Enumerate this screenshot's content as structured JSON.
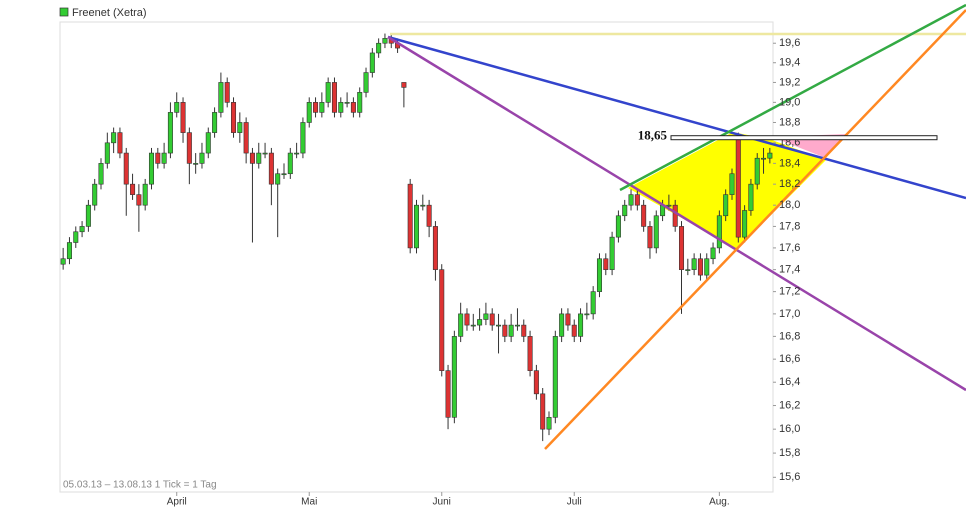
{
  "chart_data": {
    "type": "candlestick",
    "legend": "Freenet (Xetra)",
    "footer": "05.03.13 – 13.08.13   1 Tick = 1 Tag",
    "log": true,
    "up_color": "#33cc33",
    "down_color": "#dd3333",
    "ylim": [
      15.48,
      19.82
    ],
    "yticks": [
      {
        "value": 15.6,
        "label": "15,6"
      },
      {
        "value": 15.8,
        "label": "15,8"
      },
      {
        "value": 16.0,
        "label": "16,0"
      },
      {
        "value": 16.2,
        "label": "16,2"
      },
      {
        "value": 16.4,
        "label": "16,4"
      },
      {
        "value": 16.6,
        "label": "16,6"
      },
      {
        "value": 16.8,
        "label": "16,8"
      },
      {
        "value": 17.0,
        "label": "17,0"
      },
      {
        "value": 17.2,
        "label": "17,2"
      },
      {
        "value": 17.4,
        "label": "17,4"
      },
      {
        "value": 17.6,
        "label": "17,6"
      },
      {
        "value": 17.8,
        "label": "17,8"
      },
      {
        "value": 18.0,
        "label": "18,0"
      },
      {
        "value": 18.2,
        "label": "18,2"
      },
      {
        "value": 18.4,
        "label": "18,4"
      },
      {
        "value": 18.6,
        "label": "18,6"
      },
      {
        "value": 18.8,
        "label": "18,8"
      },
      {
        "value": 19.0,
        "label": "19,0"
      },
      {
        "value": 19.2,
        "label": "19,2"
      },
      {
        "value": 19.4,
        "label": "19,4"
      },
      {
        "value": 19.6,
        "label": "19,6"
      }
    ],
    "annotation": {
      "value": 18.65,
      "label": "18,65"
    },
    "categories": [
      null,
      null,
      null,
      null,
      null,
      null,
      null,
      null,
      null,
      null,
      null,
      null,
      null,
      null,
      null,
      null,
      null,
      null,
      "April",
      null,
      null,
      null,
      null,
      null,
      null,
      null,
      null,
      null,
      null,
      null,
      null,
      null,
      null,
      null,
      null,
      null,
      null,
      null,
      null,
      "Mai",
      null,
      null,
      null,
      null,
      null,
      null,
      null,
      null,
      null,
      null,
      null,
      null,
      null,
      null,
      null,
      null,
      null,
      null,
      null,
      null,
      "Juni",
      null,
      null,
      null,
      null,
      null,
      null,
      null,
      null,
      null,
      null,
      null,
      null,
      null,
      null,
      null,
      null,
      null,
      null,
      null,
      null,
      "Juli",
      null,
      null,
      null,
      null,
      null,
      null,
      null,
      null,
      null,
      null,
      null,
      null,
      null,
      null,
      null,
      null,
      null,
      null,
      null,
      null,
      null,
      null,
      "Aug.",
      null,
      null,
      null,
      null,
      null,
      null,
      null,
      null
    ],
    "open": [
      17.45,
      17.5,
      17.65,
      17.75,
      17.8,
      18.0,
      18.2,
      18.4,
      18.6,
      18.7,
      18.5,
      18.2,
      18.1,
      18.0,
      18.2,
      18.5,
      18.4,
      18.5,
      18.9,
      19.0,
      18.7,
      18.4,
      18.4,
      18.5,
      18.7,
      18.9,
      19.2,
      19.0,
      18.7,
      18.8,
      18.5,
      18.4,
      18.5,
      18.5,
      18.2,
      18.3,
      18.3,
      18.5,
      18.5,
      18.8,
      19.0,
      18.9,
      19.0,
      19.2,
      18.9,
      19.0,
      19.0,
      18.9,
      19.1,
      19.3,
      19.5,
      19.6,
      19.65,
      19.6,
      19.2,
      18.2,
      17.6,
      18.0,
      18.0,
      17.8,
      17.4,
      16.5,
      16.1,
      16.8,
      17.0,
      16.9,
      16.9,
      16.95,
      17.0,
      16.9,
      16.9,
      16.8,
      16.9,
      16.9,
      16.8,
      16.5,
      16.3,
      16.0,
      16.1,
      16.8,
      17.0,
      16.9,
      16.8,
      17.0,
      17.0,
      17.2,
      17.5,
      17.4,
      17.7,
      17.9,
      18.0,
      18.1,
      18.0,
      17.8,
      17.6,
      17.9,
      18.0,
      18.0,
      17.8,
      17.4,
      17.4,
      17.5,
      17.35,
      17.5,
      17.6,
      17.9,
      18.1,
      18.65,
      17.7,
      17.95,
      18.2,
      18.45,
      18.45
    ],
    "high": [
      17.6,
      17.7,
      17.8,
      17.85,
      18.05,
      18.25,
      18.45,
      18.7,
      18.75,
      18.75,
      18.55,
      18.3,
      18.2,
      18.25,
      18.55,
      18.55,
      18.6,
      19.0,
      19.1,
      19.05,
      18.75,
      18.5,
      18.6,
      18.75,
      18.95,
      19.3,
      19.25,
      19.05,
      18.9,
      18.85,
      18.55,
      18.6,
      18.6,
      18.55,
      18.35,
      18.4,
      18.55,
      18.6,
      18.85,
      19.05,
      19.05,
      19.1,
      19.25,
      19.25,
      19.05,
      19.1,
      19.05,
      19.15,
      19.35,
      19.55,
      19.65,
      19.7,
      19.7,
      19.65,
      19.2,
      18.25,
      18.05,
      18.1,
      18.05,
      17.85,
      17.45,
      16.55,
      16.85,
      17.1,
      17.05,
      17.0,
      17.05,
      17.1,
      17.05,
      17.0,
      16.95,
      17.0,
      17.05,
      16.95,
      16.85,
      16.55,
      16.35,
      16.15,
      16.85,
      17.05,
      17.05,
      16.95,
      17.05,
      17.1,
      17.25,
      17.55,
      17.55,
      17.75,
      17.95,
      18.05,
      18.15,
      18.15,
      18.05,
      17.85,
      17.95,
      18.05,
      18.1,
      18.05,
      17.85,
      17.5,
      17.55,
      17.55,
      17.55,
      17.65,
      17.95,
      18.15,
      18.35,
      18.7,
      18.0,
      18.25,
      18.5,
      18.55,
      18.55
    ],
    "low": [
      17.4,
      17.45,
      17.6,
      17.7,
      17.75,
      17.95,
      18.15,
      18.35,
      18.5,
      18.45,
      17.9,
      18.05,
      17.75,
      17.95,
      18.15,
      18.35,
      18.35,
      18.45,
      18.85,
      18.6,
      18.2,
      18.3,
      18.35,
      18.45,
      18.65,
      18.85,
      18.95,
      18.65,
      18.6,
      18.4,
      17.65,
      18.35,
      18.45,
      18.0,
      17.7,
      18.25,
      18.25,
      18.45,
      18.45,
      18.75,
      18.85,
      18.85,
      18.95,
      18.85,
      18.85,
      18.95,
      18.85,
      18.85,
      19.05,
      19.25,
      19.45,
      19.55,
      19.55,
      19.5,
      18.95,
      17.55,
      17.55,
      17.95,
      17.7,
      17.3,
      16.45,
      16.0,
      16.05,
      16.75,
      16.85,
      16.85,
      16.85,
      16.9,
      16.85,
      16.65,
      16.75,
      16.75,
      16.85,
      16.75,
      16.45,
      16.25,
      15.9,
      15.95,
      16.05,
      16.75,
      16.85,
      16.75,
      16.75,
      16.95,
      16.95,
      17.15,
      17.35,
      17.35,
      17.65,
      17.85,
      17.95,
      17.95,
      17.75,
      17.5,
      17.55,
      17.85,
      17.95,
      17.75,
      17.0,
      17.35,
      17.35,
      17.3,
      17.3,
      17.45,
      17.55,
      17.85,
      18.05,
      17.65,
      17.65,
      17.9,
      18.15,
      18.3,
      18.4
    ],
    "close": [
      17.5,
      17.65,
      17.75,
      17.8,
      18.0,
      18.2,
      18.4,
      18.6,
      18.7,
      18.5,
      18.2,
      18.1,
      18.0,
      18.2,
      18.5,
      18.4,
      18.5,
      18.9,
      19.0,
      18.7,
      18.4,
      18.4,
      18.5,
      18.7,
      18.9,
      19.2,
      19.0,
      18.7,
      18.8,
      18.5,
      18.4,
      18.5,
      18.5,
      18.2,
      18.3,
      18.3,
      18.5,
      18.5,
      18.8,
      19.0,
      18.9,
      19.0,
      19.2,
      18.9,
      19.0,
      19.0,
      18.9,
      19.1,
      19.3,
      19.5,
      19.6,
      19.65,
      19.6,
      19.55,
      19.15,
      17.6,
      18.0,
      18.0,
      17.8,
      17.4,
      16.5,
      16.1,
      16.8,
      17.0,
      16.9,
      16.9,
      16.95,
      17.0,
      16.9,
      16.9,
      16.8,
      16.9,
      16.9,
      16.8,
      16.5,
      16.3,
      16.0,
      16.1,
      16.8,
      17.0,
      16.9,
      16.8,
      17.0,
      17.0,
      17.2,
      17.5,
      17.4,
      17.7,
      17.9,
      18.0,
      18.1,
      18.0,
      17.8,
      17.6,
      17.9,
      18.0,
      18.0,
      17.8,
      17.4,
      17.4,
      17.5,
      17.35,
      17.5,
      17.6,
      17.9,
      18.1,
      18.3,
      17.7,
      17.95,
      18.2,
      18.45,
      18.45,
      18.5
    ]
  }
}
